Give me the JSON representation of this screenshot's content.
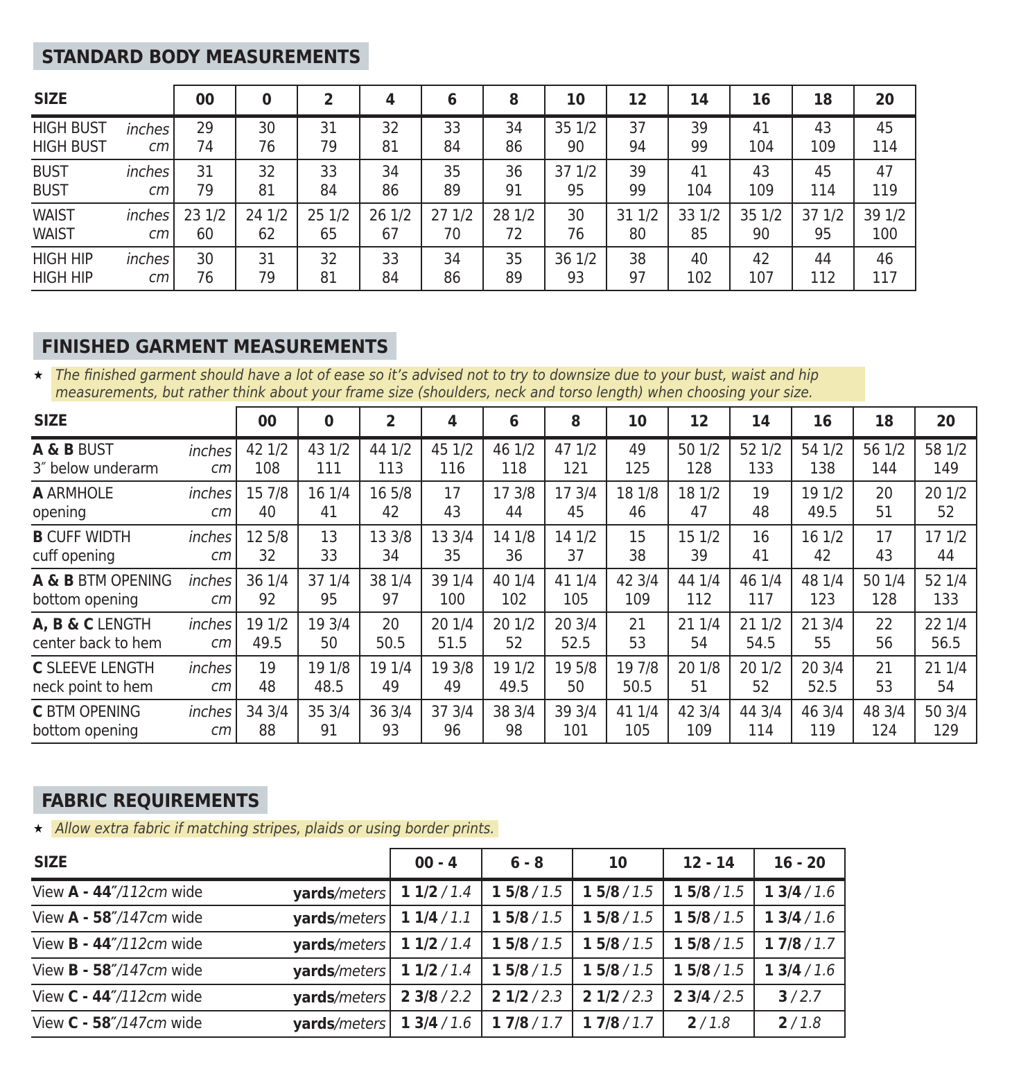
{
  "standard": {
    "title": "STANDARD BODY MEASUREMENTS",
    "size_label": "SIZE",
    "sizes": [
      "00",
      "0",
      "2",
      "4",
      "6",
      "8",
      "10",
      "12",
      "14",
      "16",
      "18",
      "20"
    ],
    "rows": [
      {
        "label": "HIGH BUST",
        "units": [
          "inches",
          "cm"
        ],
        "inches": [
          "29",
          "30",
          "31",
          "32",
          "33",
          "34",
          "35 1/2",
          "37",
          "39",
          "41",
          "43",
          "45"
        ],
        "cm": [
          "74",
          "76",
          "79",
          "81",
          "84",
          "86",
          "90",
          "94",
          "99",
          "104",
          "109",
          "114"
        ]
      },
      {
        "label": "BUST",
        "units": [
          "inches",
          "cm"
        ],
        "inches": [
          "31",
          "32",
          "33",
          "34",
          "35",
          "36",
          "37 1/2",
          "39",
          "41",
          "43",
          "45",
          "47"
        ],
        "cm": [
          "79",
          "81",
          "84",
          "86",
          "89",
          "91",
          "95",
          "99",
          "104",
          "109",
          "114",
          "119"
        ]
      },
      {
        "label": "WAIST",
        "units": [
          "inches",
          "cm"
        ],
        "inches": [
          "23 1/2",
          "24 1/2",
          "25 1/2",
          "26 1/2",
          "27 1/2",
          "28 1/2",
          "30",
          "31 1/2",
          "33 1/2",
          "35 1/2",
          "37 1/2",
          "39 1/2"
        ],
        "cm": [
          "60",
          "62",
          "65",
          "67",
          "70",
          "72",
          "76",
          "80",
          "85",
          "90",
          "95",
          "100"
        ]
      },
      {
        "label": "HIGH HIP",
        "units": [
          "inches",
          "cm"
        ],
        "inches": [
          "30",
          "31",
          "32",
          "33",
          "34",
          "35",
          "36 1/2",
          "38",
          "40",
          "42",
          "44",
          "46"
        ],
        "cm": [
          "76",
          "79",
          "81",
          "84",
          "86",
          "89",
          "93",
          "97",
          "102",
          "107",
          "112",
          "117"
        ]
      }
    ]
  },
  "finished": {
    "title": "FINISHED GARMENT MEASUREMENTS",
    "note_star": "★",
    "note": "The finished garment should have a lot of ease so it’s advised not to try to downsize due to your bust, waist and hip measurements, but rather think about your frame size (shoulders, neck and torso length) when choosing your size.",
    "size_label": "SIZE",
    "sizes": [
      "00",
      "0",
      "2",
      "4",
      "6",
      "8",
      "10",
      "12",
      "14",
      "16",
      "18",
      "20"
    ],
    "rows": [
      {
        "bold": "A & B",
        "label": " BUST",
        "sub": "3″ below underarm",
        "units": [
          "inches",
          "cm"
        ],
        "inches": [
          "42 1/2",
          "43 1/2",
          "44 1/2",
          "45 1/2",
          "46 1/2",
          "47 1/2",
          "49",
          "50 1/2",
          "52 1/2",
          "54 1/2",
          "56 1/2",
          "58 1/2"
        ],
        "cm": [
          "108",
          "111",
          "113",
          "116",
          "118",
          "121",
          "125",
          "128",
          "133",
          "138",
          "144",
          "149"
        ]
      },
      {
        "bold": "A",
        "label": " ARMHOLE",
        "sub": "opening",
        "units": [
          "inches",
          "cm"
        ],
        "inches": [
          "15 7/8",
          "16 1/4",
          "16 5/8",
          "17",
          "17 3/8",
          "17 3/4",
          "18 1/8",
          "18 1/2",
          "19",
          "19 1/2",
          "20",
          "20 1/2"
        ],
        "cm": [
          "40",
          "41",
          "42",
          "43",
          "44",
          "45",
          "46",
          "47",
          "48",
          "49.5",
          "51",
          "52"
        ]
      },
      {
        "bold": "B",
        "label": " CUFF WIDTH",
        "sub": "cuff opening",
        "units": [
          "inches",
          "cm"
        ],
        "inches": [
          "12 5/8",
          "13",
          "13 3/8",
          "13 3/4",
          "14 1/8",
          "14 1/2",
          "15",
          "15 1/2",
          "16",
          "16 1/2",
          "17",
          "17 1/2"
        ],
        "cm": [
          "32",
          "33",
          "34",
          "35",
          "36",
          "37",
          "38",
          "39",
          "41",
          "42",
          "43",
          "44"
        ]
      },
      {
        "bold": "A & B",
        "label": " BTM OPENING",
        "sub": "bottom opening",
        "units": [
          "inches",
          "cm"
        ],
        "inches": [
          "36 1/4",
          "37 1/4",
          "38 1/4",
          "39 1/4",
          "40 1/4",
          "41 1/4",
          "42 3/4",
          "44 1/4",
          "46 1/4",
          "48 1/4",
          "50 1/4",
          "52 1/4"
        ],
        "cm": [
          "92",
          "95",
          "97",
          "100",
          "102",
          "105",
          "109",
          "112",
          "117",
          "123",
          "128",
          "133"
        ]
      },
      {
        "bold": "A, B & C",
        "label": " LENGTH",
        "sub": "center back to hem",
        "units": [
          "inches",
          "cm"
        ],
        "inches": [
          "19 1/2",
          "19 3/4",
          "20",
          "20 1/4",
          "20 1/2",
          "20 3/4",
          "21",
          "21 1/4",
          "21 1/2",
          "21 3/4",
          "22",
          "22 1/4"
        ],
        "cm": [
          "49.5",
          "50",
          "50.5",
          "51.5",
          "52",
          "52.5",
          "53",
          "54",
          "54.5",
          "55",
          "56",
          "56.5"
        ]
      },
      {
        "bold": "C",
        "label": " SLEEVE LENGTH",
        "sub": "neck point to hem",
        "units": [
          "inches",
          "cm"
        ],
        "inches": [
          "19",
          "19 1/8",
          "19 1/4",
          "19 3/8",
          "19 1/2",
          "19 5/8",
          "19 7/8",
          "20 1/8",
          "20 1/2",
          "20 3/4",
          "21",
          "21 1/4"
        ],
        "cm": [
          "48",
          "48.5",
          "49",
          "49",
          "49.5",
          "50",
          "50.5",
          "51",
          "52",
          "52.5",
          "53",
          "54"
        ]
      },
      {
        "bold": "C",
        "label": " BTM OPENING",
        "sub": "bottom opening",
        "units": [
          "inches",
          "cm"
        ],
        "inches": [
          "34 3/4",
          "35 3/4",
          "36 3/4",
          "37 3/4",
          "38 3/4",
          "39 3/4",
          "41 1/4",
          "42 3/4",
          "44 3/4",
          "46 3/4",
          "48 3/4",
          "50 3/4"
        ],
        "cm": [
          "88",
          "91",
          "93",
          "96",
          "98",
          "101",
          "105",
          "109",
          "114",
          "119",
          "124",
          "129"
        ]
      }
    ]
  },
  "fabric": {
    "title": "FABRIC REQUIREMENTS",
    "note_star": "★",
    "note": "Allow extra fabric if matching stripes, plaids or using border prints.",
    "size_label": "SIZE",
    "sizes": [
      "00 - 4",
      "6 - 8",
      "10",
      "12 - 14",
      "16 - 20"
    ],
    "unit_bold": "yards",
    "unit_italic": "/meters",
    "rows": [
      {
        "pre": "View ",
        "bold": "A - 44″",
        "it": "/112cm",
        "post": " wide",
        "values": [
          [
            "1 1/2",
            "/ 1.4"
          ],
          [
            "1 5/8",
            "/ 1.5"
          ],
          [
            "1 5/8",
            "/ 1.5"
          ],
          [
            "1 5/8",
            "/ 1.5"
          ],
          [
            "1 3/4",
            "/ 1.6"
          ]
        ]
      },
      {
        "pre": "View ",
        "bold": "A - 58″",
        "it": "/147cm",
        "post": " wide",
        "values": [
          [
            "1 1/4",
            "/ 1.1"
          ],
          [
            "1 5/8",
            "/ 1.5"
          ],
          [
            "1 5/8",
            "/ 1.5"
          ],
          [
            "1 5/8",
            "/ 1.5"
          ],
          [
            "1 3/4",
            "/ 1.6"
          ]
        ]
      },
      {
        "pre": "View ",
        "bold": "B - 44″",
        "it": "/112cm",
        "post": " wide",
        "values": [
          [
            "1 1/2",
            "/ 1.4"
          ],
          [
            "1 5/8",
            "/ 1.5"
          ],
          [
            "1 5/8",
            "/ 1.5"
          ],
          [
            "1 5/8",
            "/ 1.5"
          ],
          [
            "1 7/8",
            "/ 1.7"
          ]
        ]
      },
      {
        "pre": "View ",
        "bold": "B - 58″",
        "it": "/147cm",
        "post": " wide",
        "values": [
          [
            "1 1/2",
            "/ 1.4"
          ],
          [
            "1 5/8",
            "/ 1.5"
          ],
          [
            "1 5/8",
            "/ 1.5"
          ],
          [
            "1 5/8",
            "/ 1.5"
          ],
          [
            "1 3/4",
            "/ 1.6"
          ]
        ]
      },
      {
        "pre": "View ",
        "bold": "C - 44″",
        "it": "/112cm",
        "post": " wide",
        "values": [
          [
            "2 3/8",
            "/ 2.2"
          ],
          [
            "2 1/2",
            "/ 2.3"
          ],
          [
            "2 1/2",
            "/ 2.3"
          ],
          [
            "2 3/4",
            "/ 2.5"
          ],
          [
            "3",
            "/ 2.7"
          ]
        ]
      },
      {
        "pre": "View ",
        "bold": "C - 58″",
        "it": "/147cm",
        "post": " wide",
        "values": [
          [
            "1 3/4",
            "/ 1.6"
          ],
          [
            "1 7/8",
            "/ 1.7"
          ],
          [
            "1 7/8",
            "/ 1.7"
          ],
          [
            "2",
            "/ 1.8"
          ],
          [
            "2",
            "/ 1.8"
          ]
        ]
      }
    ]
  }
}
